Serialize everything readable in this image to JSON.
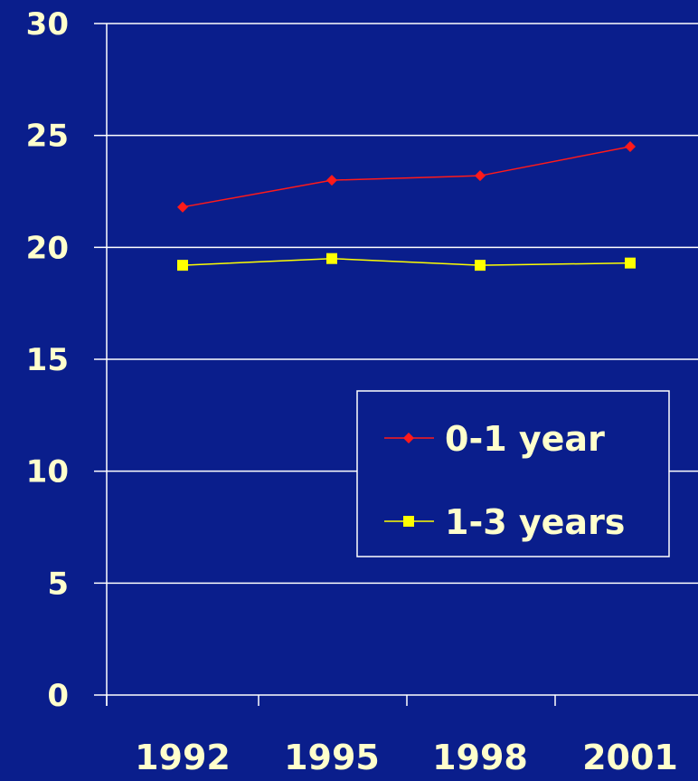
{
  "chart_data": {
    "type": "line",
    "categories": [
      "1992",
      "1995",
      "1998",
      "2001"
    ],
    "series": [
      {
        "name": "0-1 year",
        "values": [
          21.8,
          23.0,
          23.2,
          24.5
        ],
        "color": "#ff1a1a",
        "marker": "diamond"
      },
      {
        "name": "1-3 years",
        "values": [
          19.2,
          19.5,
          19.2,
          19.3
        ],
        "color": "#ffff00",
        "marker": "square"
      }
    ],
    "title": "",
    "xlabel": "",
    "ylabel": "",
    "ylim": [
      0,
      30
    ],
    "yticks": [
      "0",
      "5",
      "10",
      "15",
      "20",
      "25",
      "30"
    ],
    "grid": true,
    "legend": "center-right"
  },
  "colors": {
    "background": "#0a1e8c",
    "axis": "#ffffff",
    "text": "#ffffcc"
  }
}
